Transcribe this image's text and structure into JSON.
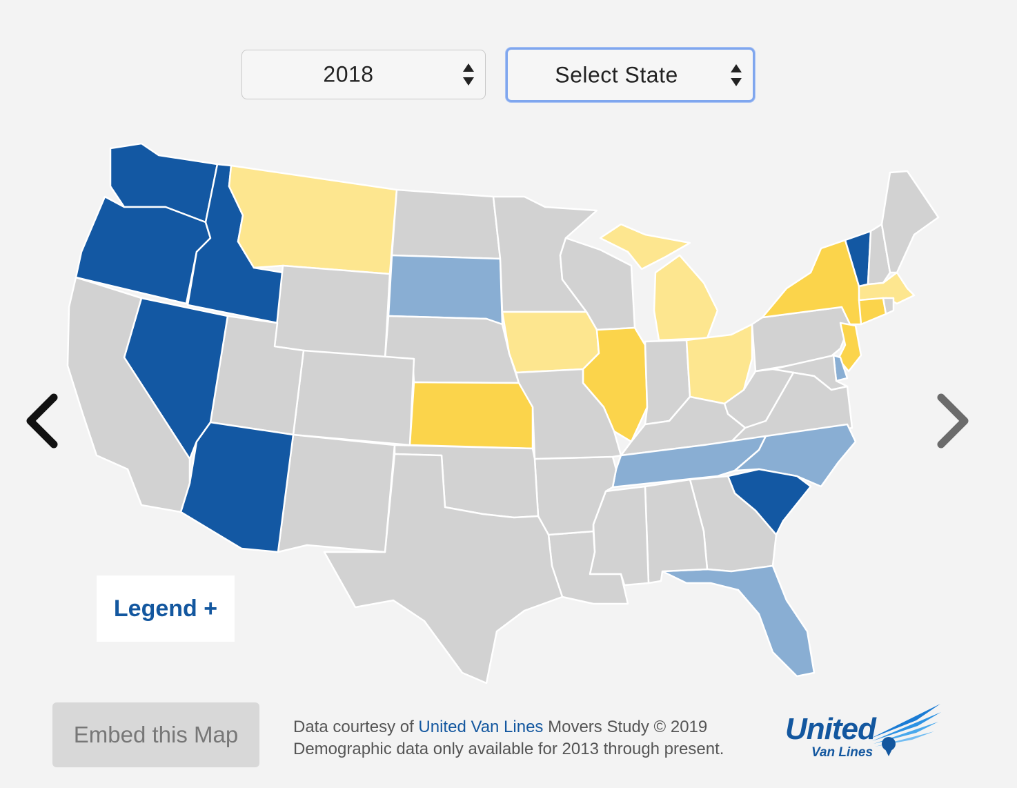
{
  "controls": {
    "year_select": {
      "value": "2018"
    },
    "state_select": {
      "value": "Select State"
    }
  },
  "legend_button": {
    "label": "Legend +"
  },
  "embed_button": {
    "label": "Embed this Map"
  },
  "credits": {
    "line1_prefix": "Data courtesy of ",
    "line1_link": "United Van Lines",
    "line1_suffix": " Movers Study © 2019",
    "line2": "Demographic data only available for 2013 through present."
  },
  "logo": {
    "word": "United",
    "sub": "Van Lines"
  },
  "colors": {
    "outbound_high": "#1358a3",
    "outbound_moderate": "#89aed3",
    "balanced": "#d2d2d2",
    "inbound_moderate": "#fde68f",
    "inbound_high": "#fbd44b",
    "background": "#f3f3f3",
    "accent": "#13579f"
  },
  "map_states": [
    {
      "name": "Washington",
      "category": "outbound_high"
    },
    {
      "name": "Oregon",
      "category": "outbound_high"
    },
    {
      "name": "Idaho",
      "category": "outbound_high"
    },
    {
      "name": "Nevada",
      "category": "outbound_high"
    },
    {
      "name": "Arizona",
      "category": "outbound_high"
    },
    {
      "name": "Vermont",
      "category": "outbound_high"
    },
    {
      "name": "South Carolina",
      "category": "outbound_high"
    },
    {
      "name": "South Dakota",
      "category": "outbound_moderate"
    },
    {
      "name": "Tennessee",
      "category": "outbound_moderate"
    },
    {
      "name": "North Carolina",
      "category": "outbound_moderate"
    },
    {
      "name": "Florida",
      "category": "outbound_moderate"
    },
    {
      "name": "Delaware",
      "category": "outbound_moderate"
    },
    {
      "name": "Montana",
      "category": "inbound_moderate"
    },
    {
      "name": "Michigan",
      "category": "inbound_moderate"
    },
    {
      "name": "Iowa",
      "category": "inbound_moderate"
    },
    {
      "name": "Ohio",
      "category": "inbound_moderate"
    },
    {
      "name": "Massachusetts",
      "category": "inbound_moderate"
    },
    {
      "name": "Kansas",
      "category": "inbound_high"
    },
    {
      "name": "Illinois",
      "category": "inbound_high"
    },
    {
      "name": "New York",
      "category": "inbound_high"
    },
    {
      "name": "New Jersey",
      "category": "inbound_high"
    },
    {
      "name": "Connecticut",
      "category": "inbound_high"
    },
    {
      "name": "California",
      "category": "balanced"
    },
    {
      "name": "Utah",
      "category": "balanced"
    },
    {
      "name": "Wyoming",
      "category": "balanced"
    },
    {
      "name": "Colorado",
      "category": "balanced"
    },
    {
      "name": "New Mexico",
      "category": "balanced"
    },
    {
      "name": "Texas",
      "category": "balanced"
    },
    {
      "name": "Oklahoma",
      "category": "balanced"
    },
    {
      "name": "Nebraska",
      "category": "balanced"
    },
    {
      "name": "North Dakota",
      "category": "balanced"
    },
    {
      "name": "Minnesota",
      "category": "balanced"
    },
    {
      "name": "Wisconsin",
      "category": "balanced"
    },
    {
      "name": "Missouri",
      "category": "balanced"
    },
    {
      "name": "Arkansas",
      "category": "balanced"
    },
    {
      "name": "Louisiana",
      "category": "balanced"
    },
    {
      "name": "Mississippi",
      "category": "balanced"
    },
    {
      "name": "Alabama",
      "category": "balanced"
    },
    {
      "name": "Georgia",
      "category": "balanced"
    },
    {
      "name": "Kentucky",
      "category": "balanced"
    },
    {
      "name": "Indiana",
      "category": "balanced"
    },
    {
      "name": "West Virginia",
      "category": "balanced"
    },
    {
      "name": "Virginia",
      "category": "balanced"
    },
    {
      "name": "Pennsylvania",
      "category": "balanced"
    },
    {
      "name": "Maryland",
      "category": "balanced"
    },
    {
      "name": "Maine",
      "category": "balanced"
    },
    {
      "name": "New Hampshire",
      "category": "balanced"
    },
    {
      "name": "Rhode Island",
      "category": "balanced"
    }
  ]
}
